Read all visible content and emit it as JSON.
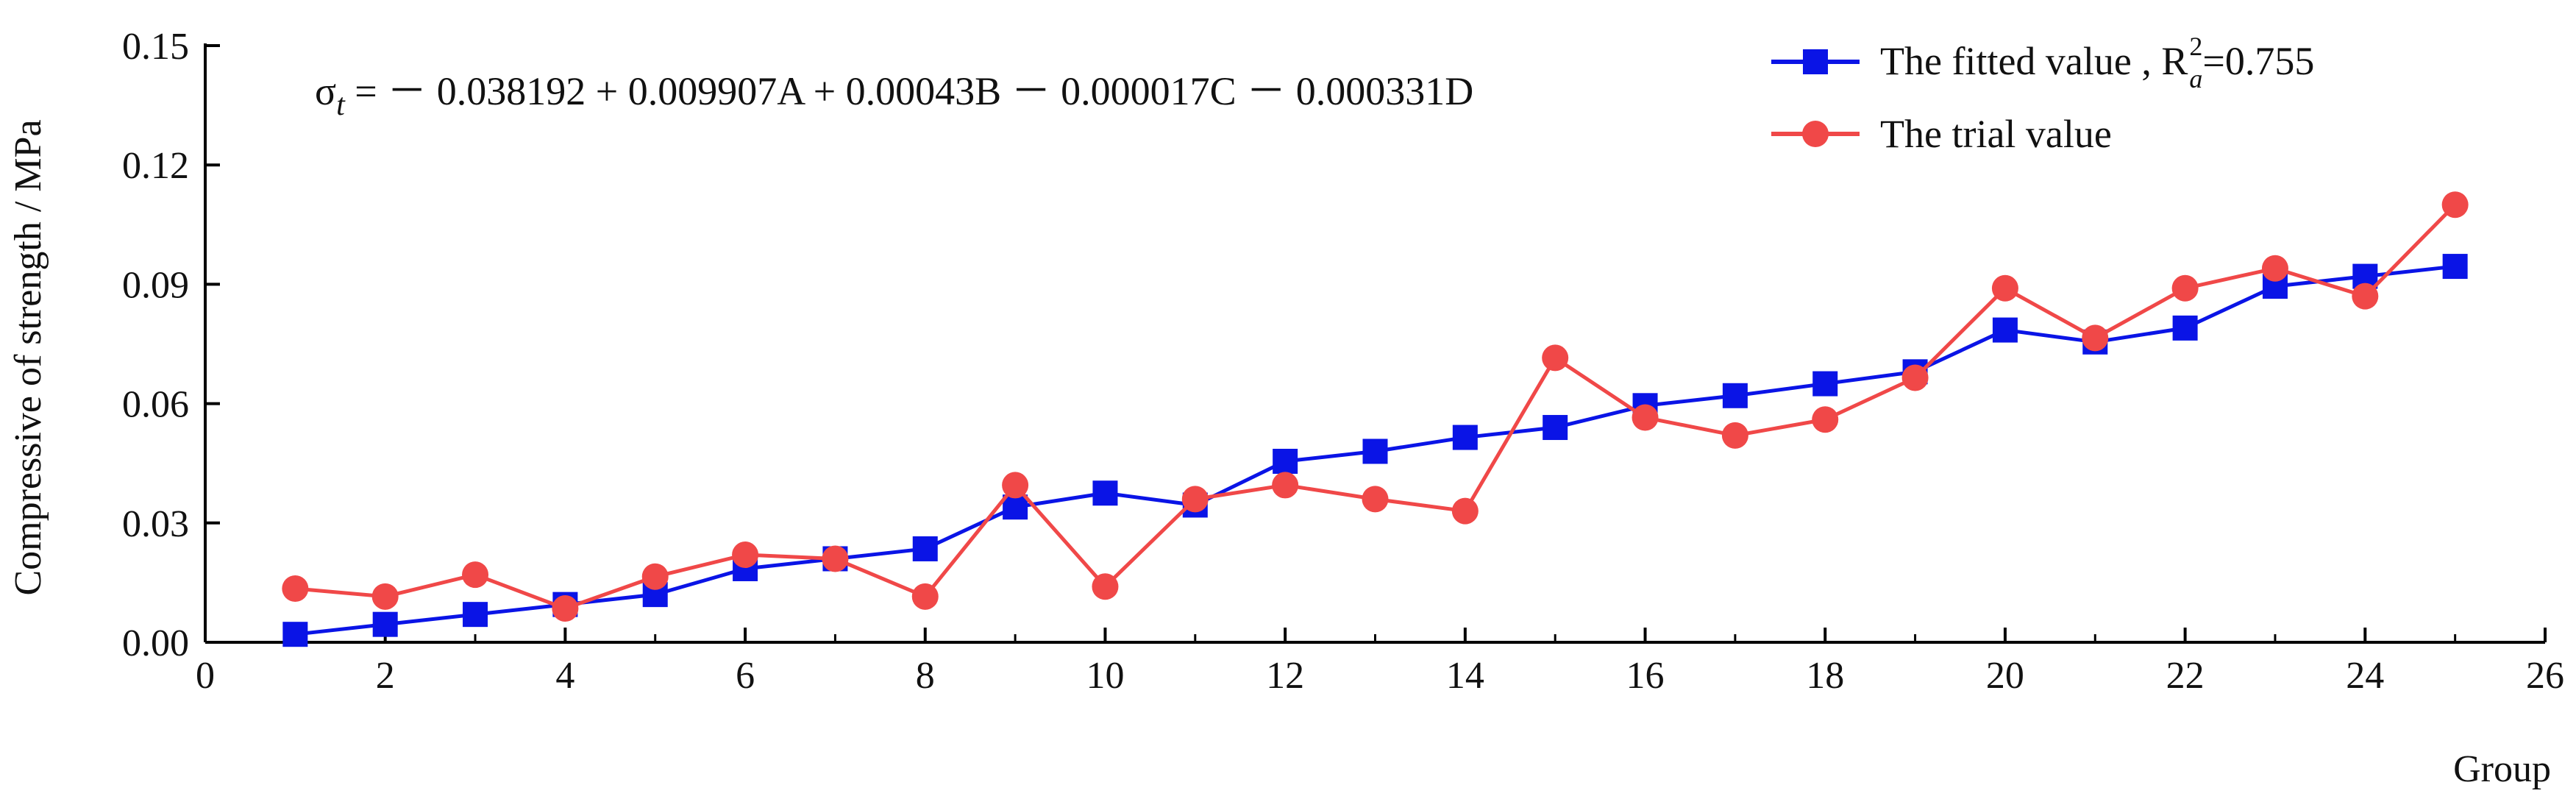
{
  "chart_data": {
    "type": "line",
    "xlabel": "Group",
    "ylabel": "Compressive of strength / MPa",
    "xlim": [
      0,
      26
    ],
    "ylim": [
      0,
      0.15
    ],
    "xticks": [
      "0",
      "2",
      "4",
      "6",
      "8",
      "10",
      "12",
      "14",
      "16",
      "18",
      "20",
      "22",
      "24",
      "26"
    ],
    "yticks": [
      "0.00",
      "0.03",
      "0.06",
      "0.09",
      "0.12",
      "0.15"
    ],
    "grid": false,
    "legend_position": "top-right",
    "equation": {
      "lhs_symbol": "σ",
      "lhs_subscript": "t",
      "rhs": " = － 0.038192 + 0.009907A + 0.00043B － 0.000017C － 0.000331D"
    },
    "x": [
      1,
      2,
      3,
      4,
      5,
      6,
      7,
      8,
      9,
      10,
      11,
      12,
      13,
      14,
      15,
      16,
      17,
      18,
      19,
      20,
      21,
      22,
      23,
      24,
      25
    ],
    "series": [
      {
        "name": "The fitted value ,",
        "r2_base": "R",
        "r2_sup": "2",
        "r2_sub": "a",
        "r2_value": "=0.755",
        "color": "#0a14e6",
        "marker": "square",
        "values": [
          0.002,
          0.0045,
          0.007,
          0.0095,
          0.012,
          0.0185,
          0.021,
          0.0235,
          0.034,
          0.0375,
          0.0345,
          0.0455,
          0.048,
          0.0515,
          0.054,
          0.0595,
          0.062,
          0.065,
          0.068,
          0.0785,
          0.0755,
          0.079,
          0.0895,
          0.092,
          0.0945
        ]
      },
      {
        "name": "The trial value",
        "color": "#f04848",
        "marker": "circle",
        "values": [
          0.0135,
          0.0115,
          0.017,
          0.0085,
          0.0165,
          0.022,
          0.021,
          0.0115,
          0.0395,
          0.014,
          0.036,
          0.0395,
          0.036,
          0.033,
          0.0715,
          0.0565,
          0.052,
          0.056,
          0.0665,
          0.089,
          0.0765,
          0.089,
          0.094,
          0.087,
          0.11
        ]
      }
    ]
  }
}
